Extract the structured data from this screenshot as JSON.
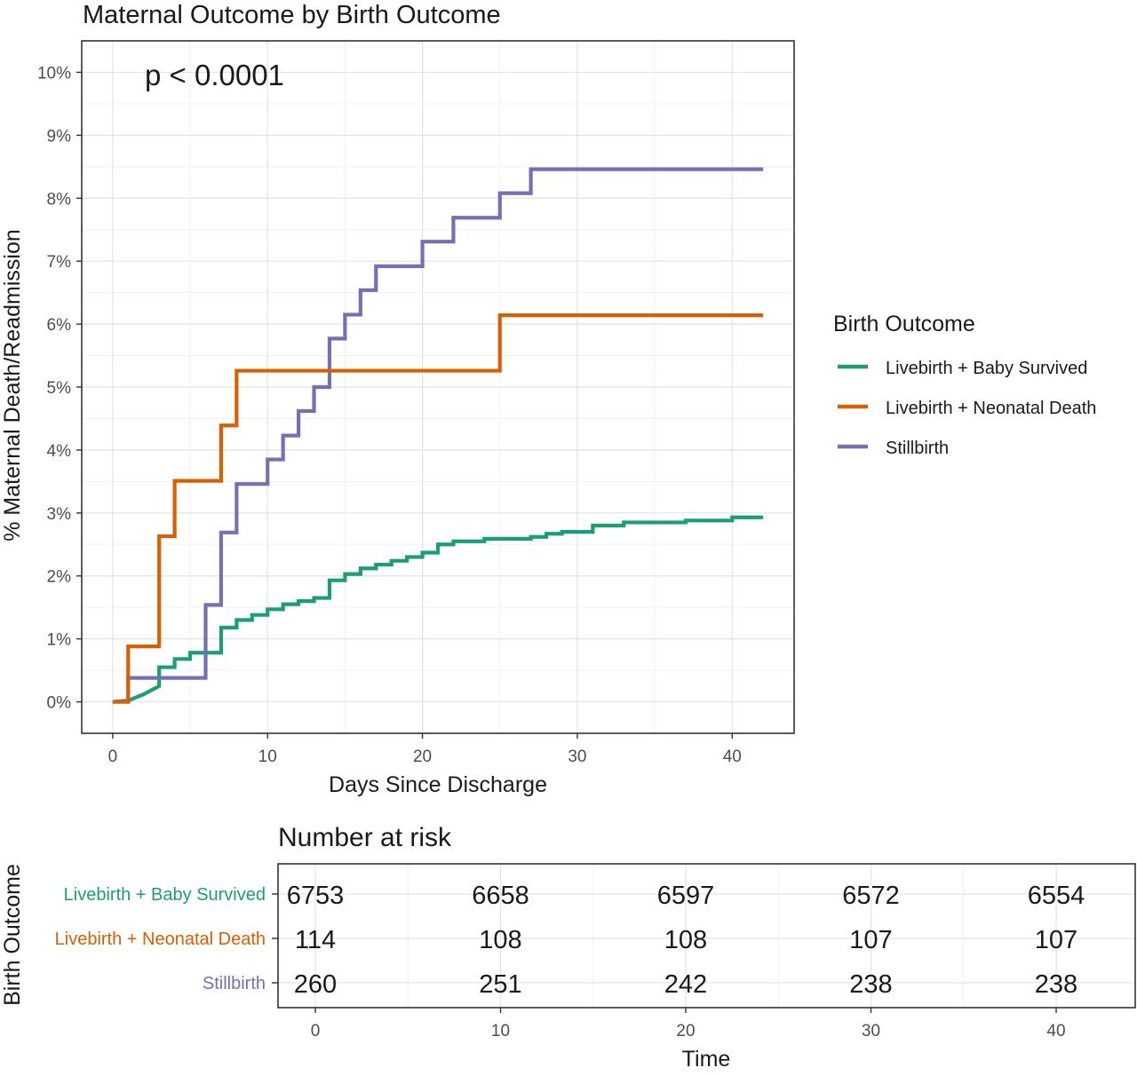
{
  "chart_data": [
    {
      "type": "line",
      "title": "Maternal Outcome by Birth Outcome",
      "annotation": "p < 0.0001",
      "xlabel": "Days Since Discharge",
      "ylabel": "% Maternal Death/Readmission",
      "xlim": [
        -2,
        44
      ],
      "ylim": [
        -0.5,
        10.5
      ],
      "x_ticks": [
        0,
        10,
        20,
        30,
        40
      ],
      "y_ticks": [
        0,
        1,
        2,
        3,
        4,
        5,
        6,
        7,
        8,
        9,
        10
      ],
      "y_tick_labels": [
        "0%",
        "1%",
        "2%",
        "3%",
        "4%",
        "5%",
        "6%",
        "7%",
        "8%",
        "9%",
        "10%"
      ],
      "x_tick_labels": [
        "0",
        "10",
        "20",
        "30",
        "40"
      ],
      "grid": true,
      "step": true,
      "legend": {
        "title": "Birth Outcome",
        "position": "right"
      },
      "series": [
        {
          "name": "Livebirth + Baby Survived",
          "color": "#1b9e77",
          "points": [
            [
              0,
              0
            ],
            [
              1,
              0.02
            ],
            [
              2,
              0.12
            ],
            [
              3,
              0.25
            ],
            [
              3,
              0.55
            ],
            [
              4,
              0.55
            ],
            [
              4,
              0.68
            ],
            [
              5,
              0.68
            ],
            [
              5,
              0.78
            ],
            [
              7,
              0.78
            ],
            [
              7,
              1.18
            ],
            [
              8,
              1.18
            ],
            [
              8,
              1.3
            ],
            [
              9,
              1.3
            ],
            [
              9,
              1.38
            ],
            [
              10,
              1.38
            ],
            [
              10,
              1.47
            ],
            [
              11,
              1.47
            ],
            [
              11,
              1.55
            ],
            [
              12,
              1.55
            ],
            [
              12,
              1.6
            ],
            [
              13,
              1.6
            ],
            [
              13,
              1.65
            ],
            [
              14,
              1.65
            ],
            [
              14,
              1.93
            ],
            [
              15,
              1.93
            ],
            [
              15,
              2.03
            ],
            [
              16,
              2.03
            ],
            [
              16,
              2.12
            ],
            [
              17,
              2.12
            ],
            [
              17,
              2.18
            ],
            [
              18,
              2.18
            ],
            [
              18,
              2.24
            ],
            [
              19,
              2.24
            ],
            [
              19,
              2.3
            ],
            [
              20,
              2.3
            ],
            [
              20,
              2.37
            ],
            [
              21,
              2.37
            ],
            [
              21,
              2.5
            ],
            [
              22,
              2.5
            ],
            [
              22,
              2.55
            ],
            [
              24,
              2.55
            ],
            [
              24,
              2.59
            ],
            [
              27,
              2.59
            ],
            [
              27,
              2.62
            ],
            [
              28,
              2.62
            ],
            [
              28,
              2.67
            ],
            [
              29,
              2.67
            ],
            [
              29,
              2.7
            ],
            [
              31,
              2.7
            ],
            [
              31,
              2.8
            ],
            [
              33,
              2.8
            ],
            [
              33,
              2.85
            ],
            [
              37,
              2.85
            ],
            [
              37,
              2.88
            ],
            [
              40,
              2.88
            ],
            [
              40,
              2.93
            ],
            [
              42,
              2.93
            ]
          ]
        },
        {
          "name": "Livebirth + Neonatal Death",
          "color": "#d95f02",
          "points": [
            [
              0,
              0
            ],
            [
              1,
              0
            ],
            [
              1,
              0.88
            ],
            [
              3,
              0.88
            ],
            [
              3,
              2.63
            ],
            [
              4,
              2.63
            ],
            [
              4,
              3.51
            ],
            [
              7,
              3.51
            ],
            [
              7,
              4.39
            ],
            [
              8,
              4.39
            ],
            [
              8,
              5.26
            ],
            [
              25,
              5.26
            ],
            [
              25,
              6.14
            ],
            [
              42,
              6.14
            ]
          ]
        },
        {
          "name": "Stillbirth",
          "color": "#7570b3",
          "points": [
            [
              0,
              0
            ],
            [
              1,
              0
            ],
            [
              1,
              0.38
            ],
            [
              6,
              0.38
            ],
            [
              6,
              1.54
            ],
            [
              7,
              1.54
            ],
            [
              7,
              2.69
            ],
            [
              8,
              2.69
            ],
            [
              8,
              3.46
            ],
            [
              10,
              3.46
            ],
            [
              10,
              3.85
            ],
            [
              11,
              3.85
            ],
            [
              11,
              4.23
            ],
            [
              12,
              4.23
            ],
            [
              12,
              4.62
            ],
            [
              13,
              4.62
            ],
            [
              13,
              5.0
            ],
            [
              14,
              5.0
            ],
            [
              14,
              5.77
            ],
            [
              15,
              5.77
            ],
            [
              15,
              6.15
            ],
            [
              16,
              6.15
            ],
            [
              16,
              6.54
            ],
            [
              17,
              6.54
            ],
            [
              17,
              6.92
            ],
            [
              20,
              6.92
            ],
            [
              20,
              7.31
            ],
            [
              22,
              7.31
            ],
            [
              22,
              7.69
            ],
            [
              25,
              7.69
            ],
            [
              25,
              8.08
            ],
            [
              27,
              8.08
            ],
            [
              27,
              8.46
            ],
            [
              42,
              8.46
            ]
          ]
        }
      ]
    },
    {
      "type": "table",
      "title": "Number at risk",
      "xlabel": "Time",
      "ylabel": "Birth Outcome",
      "x_ticks": [
        "0",
        "10",
        "20",
        "30",
        "40"
      ],
      "rows": [
        {
          "label": "Livebirth + Baby Survived",
          "color": "#1b9e77",
          "values": [
            "6753",
            "6658",
            "6597",
            "6572",
            "6554"
          ]
        },
        {
          "label": "Livebirth + Neonatal Death",
          "color": "#d95f02",
          "values": [
            "114",
            "108",
            "108",
            "107",
            "107"
          ]
        },
        {
          "label": "Stillbirth",
          "color": "#7570b3",
          "values": [
            "260",
            "251",
            "242",
            "238",
            "238"
          ]
        }
      ]
    }
  ]
}
